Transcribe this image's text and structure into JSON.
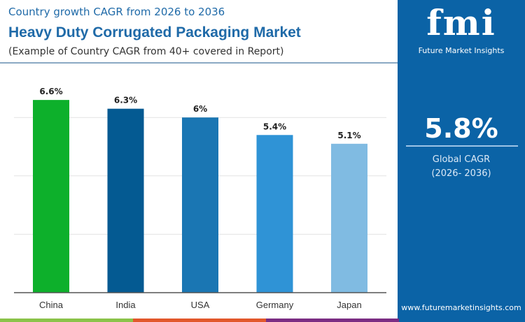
{
  "header": {
    "subtitle": "Country growth CAGR from 2026 to 2036",
    "title": "Heavy Duty Corrugated Packaging Market",
    "note": "(Example of Country CAGR from 40+ covered in Report)"
  },
  "panel": {
    "logo": "fmi",
    "logo_sub": "Future Market Insights",
    "value": "5.8%",
    "label": "Global CAGR",
    "period": "(2026- 2036)",
    "url": "www.futuremarketinsights.com"
  },
  "colors": {
    "panel": "#0b63a6",
    "bottom_bar": [
      "#8bc34a",
      "#e2572b",
      "#7b2d83"
    ]
  },
  "chart_data": {
    "type": "bar",
    "categories": [
      "China",
      "India",
      "USA",
      "Germany",
      "Japan"
    ],
    "values": [
      6.6,
      6.3,
      6.0,
      5.4,
      5.1
    ],
    "data_labels": [
      "6.6%",
      "6.3%",
      "6%",
      "5.4%",
      "5.1%"
    ],
    "colors": [
      "#0db02b",
      "#045a92",
      "#1a76b3",
      "#2f93d6",
      "#80bbe2"
    ],
    "ylim": [
      0,
      8
    ],
    "grid": true,
    "gridlines": [
      2,
      4,
      6,
      8
    ]
  }
}
